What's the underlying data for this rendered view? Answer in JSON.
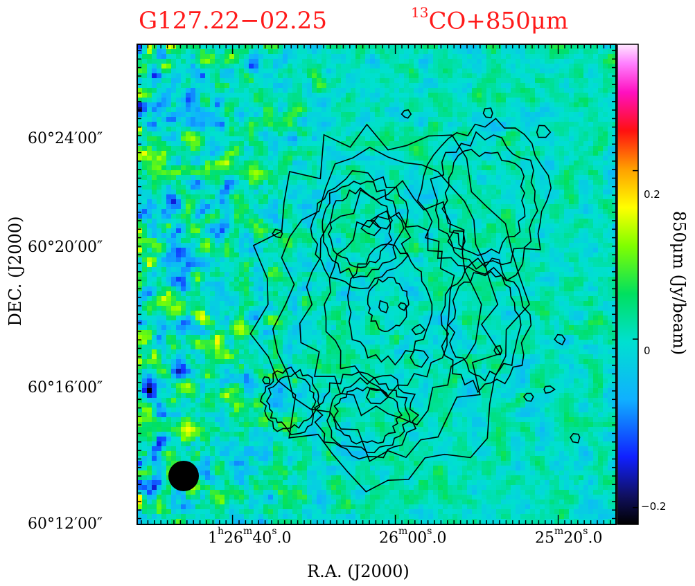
{
  "chart_data": {
    "type": "heatmap",
    "title_left": "G127.22−02.25",
    "title_right_sup": "13",
    "title_right_main": "CO+850μm",
    "xlabel": "R.A. (J2000)",
    "ylabel": "DEC. (J2000)",
    "colorbar_label": "850μm (Jy/beam)",
    "colorbar_range": [
      -0.22,
      0.35
    ],
    "colorbar_ticks": [
      "0.2",
      "0",
      "−0.2"
    ],
    "colorbar_tick_values": [
      0.2,
      0,
      -0.2
    ],
    "x_ticks": [
      {
        "h": "1",
        "hs": "h",
        "m": "26",
        "ms": "m",
        "s": "40",
        "ss": "s",
        "frac": ".0"
      },
      {
        "h": "",
        "hs": "",
        "m": "26",
        "ms": "m",
        "s": "00",
        "ss": "s",
        "frac": ".0"
      },
      {
        "h": "",
        "hs": "",
        "m": "25",
        "ms": "m",
        "s": "20",
        "ss": "s",
        "frac": ".0"
      }
    ],
    "y_ticks": [
      "60°24′00″",
      "60°20′00″",
      "60°16′00″",
      "60°12′00″"
    ],
    "contour_color": "#000000",
    "beam_marker": "filled-circle"
  }
}
